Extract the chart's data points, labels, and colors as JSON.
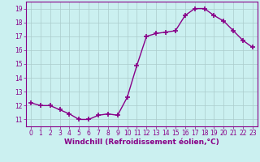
{
  "x": [
    0,
    1,
    2,
    3,
    4,
    5,
    6,
    7,
    8,
    9,
    10,
    11,
    12,
    13,
    14,
    15,
    16,
    17,
    18,
    19,
    20,
    21,
    22,
    23
  ],
  "y": [
    12.2,
    12.0,
    12.0,
    11.7,
    11.4,
    11.0,
    11.0,
    11.3,
    11.4,
    11.3,
    12.6,
    14.9,
    17.0,
    17.2,
    17.3,
    17.4,
    18.5,
    19.0,
    19.0,
    18.5,
    18.1,
    17.4,
    16.7,
    16.2
  ],
  "line_color": "#880088",
  "marker": "+",
  "markersize": 4,
  "markeredgewidth": 1.2,
  "linewidth": 1.0,
  "bg_color": "#cbf0f0",
  "grid_color": "#aacccc",
  "xlabel": "Windchill (Refroidissement éolien,°C)",
  "ylabel": "",
  "title": "",
  "xlim": [
    -0.5,
    23.5
  ],
  "ylim": [
    10.5,
    19.5
  ],
  "yticks": [
    11,
    12,
    13,
    14,
    15,
    16,
    17,
    18,
    19
  ],
  "xticks": [
    0,
    1,
    2,
    3,
    4,
    5,
    6,
    7,
    8,
    9,
    10,
    11,
    12,
    13,
    14,
    15,
    16,
    17,
    18,
    19,
    20,
    21,
    22,
    23
  ],
  "xlabel_fontsize": 6.5,
  "tick_fontsize": 5.5,
  "label_color": "#880088",
  "spine_color": "#880088"
}
